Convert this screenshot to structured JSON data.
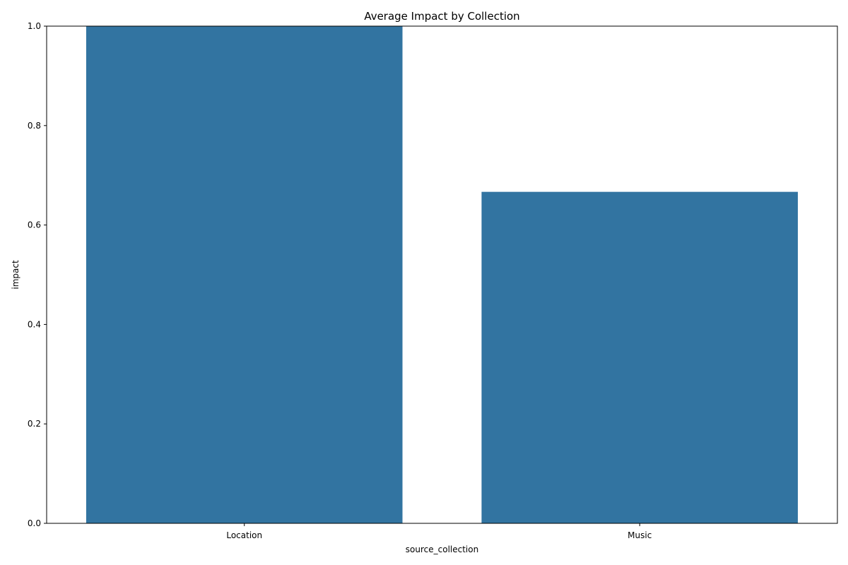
{
  "chart_data": {
    "type": "bar",
    "title": "Average Impact by Collection",
    "xlabel": "source_collection",
    "ylabel": "impact",
    "categories": [
      "Location",
      "Music"
    ],
    "values": [
      1.0,
      0.6667
    ],
    "ylim": [
      0,
      1.0
    ],
    "yticks": [
      "0.0",
      "0.2",
      "0.4",
      "0.6",
      "0.8",
      "1.0"
    ],
    "grid": false,
    "bar_color": "#3274a1"
  }
}
